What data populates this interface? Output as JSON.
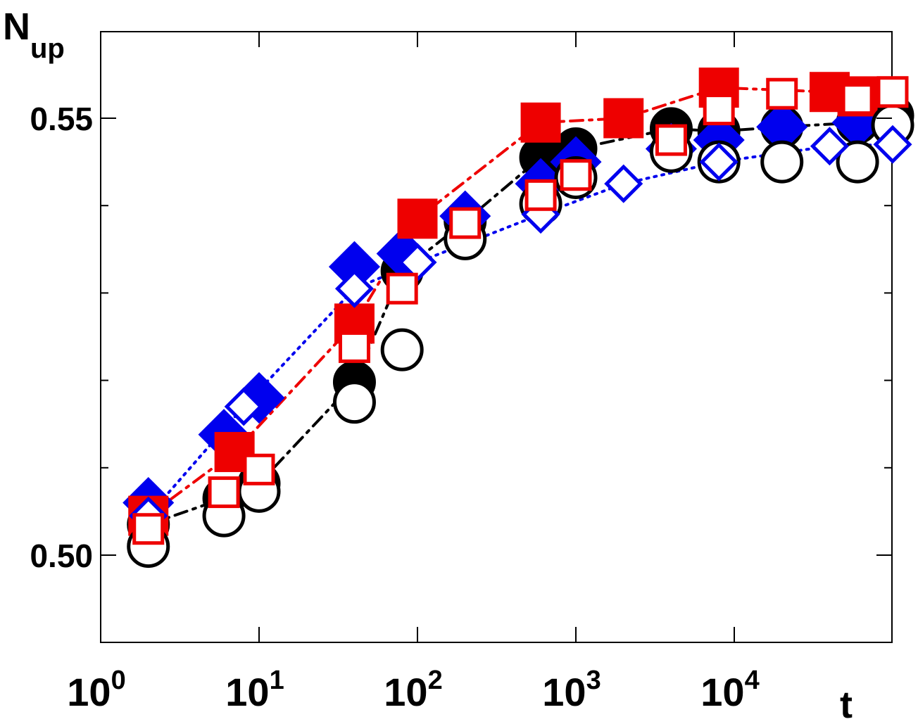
{
  "chart_data": {
    "type": "scatter",
    "xlabel": "t",
    "ylabel_main": "N",
    "ylabel_sub": "up",
    "x_scale": "log",
    "xlim": [
      1,
      100000
    ],
    "ylim": [
      0.48,
      0.55
    ],
    "y_ticks": [
      {
        "value": 0.5,
        "label": "0.50"
      },
      {
        "value": 0.55,
        "label": "0.55"
      }
    ],
    "x_ticks": [
      {
        "value": 1,
        "base": "10",
        "exp": "0"
      },
      {
        "value": 10,
        "base": "10",
        "exp": "1"
      },
      {
        "value": 100,
        "base": "10",
        "exp": "2"
      },
      {
        "value": 1000,
        "base": "10",
        "exp": "3"
      },
      {
        "value": 10000,
        "base": "10",
        "exp": "4"
      }
    ],
    "grid": false,
    "series": [
      {
        "marker": "circle",
        "filled": true,
        "color": "#000000",
        "line": "dashdot",
        "points": [
          [
            2,
            0.5035
          ],
          [
            6,
            0.5065
          ],
          [
            10,
            0.5082
          ],
          [
            40,
            0.5198
          ],
          [
            80,
            0.5325
          ],
          [
            200,
            0.5382
          ],
          [
            600,
            0.5455
          ],
          [
            1000,
            0.5465
          ],
          [
            4000,
            0.5488
          ],
          [
            8000,
            0.5485
          ],
          [
            20000,
            0.549
          ],
          [
            60000,
            0.5495
          ],
          [
            100000,
            0.5503
          ]
        ]
      },
      {
        "marker": "circle",
        "filled": false,
        "color": "#000000",
        "line": "none",
        "points": [
          [
            2,
            0.501
          ],
          [
            6,
            0.5045
          ],
          [
            10,
            0.5073
          ],
          [
            40,
            0.5175
          ],
          [
            80,
            0.5235
          ],
          [
            200,
            0.5362
          ],
          [
            600,
            0.5402
          ],
          [
            1000,
            0.5432
          ],
          [
            4000,
            0.5462
          ],
          [
            8000,
            0.545
          ],
          [
            20000,
            0.545
          ],
          [
            60000,
            0.545
          ],
          [
            100000,
            0.5492
          ]
        ]
      },
      {
        "marker": "diamond",
        "filled": true,
        "color": "#0000ee",
        "line": "none",
        "points": [
          [
            2,
            0.506
          ],
          [
            6,
            0.5138
          ],
          [
            10,
            0.518
          ],
          [
            40,
            0.533
          ],
          [
            80,
            0.5345
          ],
          [
            200,
            0.5388
          ],
          [
            600,
            0.5425
          ],
          [
            1000,
            0.545
          ],
          [
            4000,
            0.5465
          ],
          [
            8000,
            0.5475
          ],
          [
            20000,
            0.549
          ],
          [
            60000,
            0.5495
          ]
        ]
      },
      {
        "marker": "diamond",
        "filled": false,
        "color": "#0000ee",
        "line": "dotted",
        "points": [
          [
            2,
            0.5045
          ],
          [
            8,
            0.517
          ],
          [
            40,
            0.5305
          ],
          [
            100,
            0.5335
          ],
          [
            600,
            0.539
          ],
          [
            2000,
            0.5425
          ],
          [
            8000,
            0.545
          ],
          [
            40000,
            0.5468
          ],
          [
            100000,
            0.547
          ]
        ]
      },
      {
        "marker": "square",
        "filled": true,
        "color": "#ee0000",
        "line": "dashdot",
        "points": [
          [
            2,
            0.5045
          ],
          [
            7,
            0.5118
          ],
          [
            40,
            0.5265
          ],
          [
            100,
            0.5385
          ],
          [
            600,
            0.5495
          ],
          [
            2000,
            0.55
          ],
          [
            8000,
            0.5535
          ],
          [
            40000,
            0.553
          ],
          [
            60000,
            0.5525
          ]
        ]
      },
      {
        "marker": "square",
        "filled": false,
        "color": "#ee0000",
        "line": "none",
        "points": [
          [
            2,
            0.503
          ],
          [
            6,
            0.5072
          ],
          [
            10,
            0.5098
          ],
          [
            40,
            0.5238
          ],
          [
            80,
            0.5305
          ],
          [
            200,
            0.538
          ],
          [
            600,
            0.5412
          ],
          [
            1000,
            0.5435
          ],
          [
            4000,
            0.5475
          ],
          [
            8000,
            0.551
          ],
          [
            20000,
            0.5528
          ],
          [
            60000,
            0.5522
          ],
          [
            100000,
            0.553
          ]
        ]
      }
    ]
  }
}
